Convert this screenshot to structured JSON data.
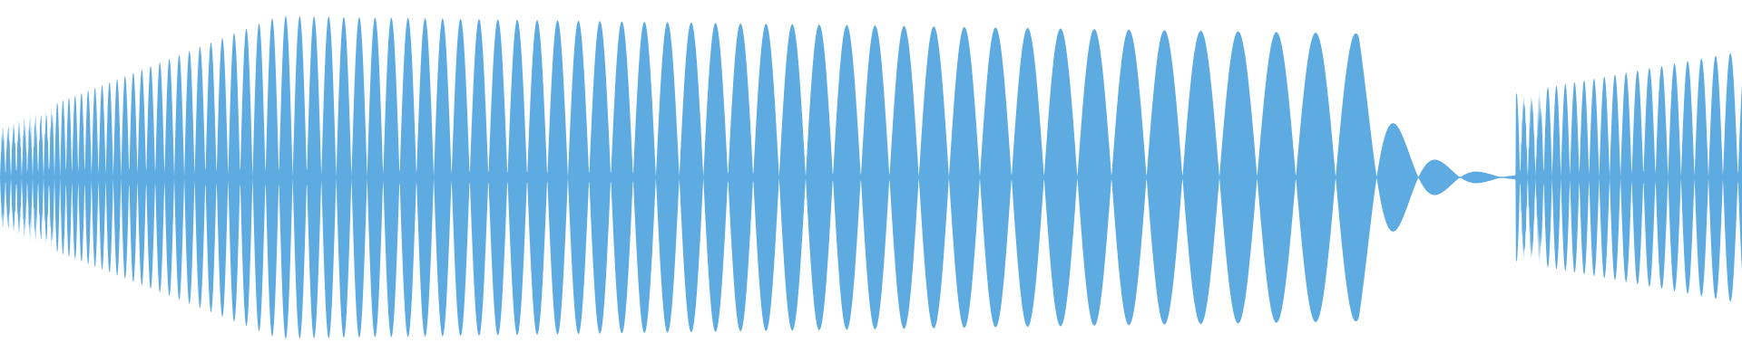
{
  "waveform": {
    "color": "#5DABE1",
    "background": "#FFFFFF",
    "segments": [
      {
        "name": "dense-intro",
        "from": 0.0,
        "to": 0.16,
        "level_start": 0.3,
        "level_end": 0.92
      },
      {
        "name": "fm-sweep",
        "from": 0.16,
        "to": 0.78,
        "level_start": 0.92,
        "level_end": 0.82
      },
      {
        "name": "decay",
        "from": 0.78,
        "to": 0.87,
        "level_start": 0.82,
        "level_end": 0.02
      },
      {
        "name": "dense-outro",
        "from": 0.87,
        "to": 1.0,
        "level_start": 0.48,
        "level_end": 0.72
      }
    ]
  }
}
